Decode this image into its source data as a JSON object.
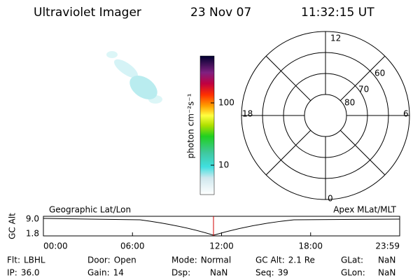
{
  "header": {
    "title": "Ultraviolet Imager",
    "date": "23 Nov 07",
    "time": "11:32:15 UT"
  },
  "colorbar": {
    "label": "photon cm⁻²s⁻¹",
    "ticks": [
      "100",
      "10"
    ]
  },
  "polar": {
    "mlt_labels": [
      "12",
      "18",
      "6",
      "0"
    ],
    "lat_labels": [
      "60",
      "70",
      "80"
    ]
  },
  "timeline": {
    "y_label": "GC Alt",
    "y_ticks": [
      "9.0",
      "1.8"
    ],
    "left_label": "Geographic Lat/Lon",
    "right_label": "Apex MLat/MLT",
    "time_ticks": [
      "00:00",
      "06:00",
      "12:00",
      "18:00",
      "23:59"
    ]
  },
  "info": {
    "rows": [
      [
        [
          "Flt:",
          "LBHL"
        ],
        [
          "Door:",
          "Open"
        ],
        [
          "Mode:",
          "Normal"
        ],
        [
          "GC Alt:",
          "2.1 Re"
        ],
        [
          "GLat:",
          "NaN"
        ]
      ],
      [
        [
          "IP:",
          "36.0"
        ],
        [
          "Gain:",
          "14"
        ],
        [
          "Dsp:",
          "NaN"
        ],
        [
          "Seq:",
          "39"
        ],
        [
          "GLon:",
          "NaN"
        ]
      ]
    ]
  }
}
